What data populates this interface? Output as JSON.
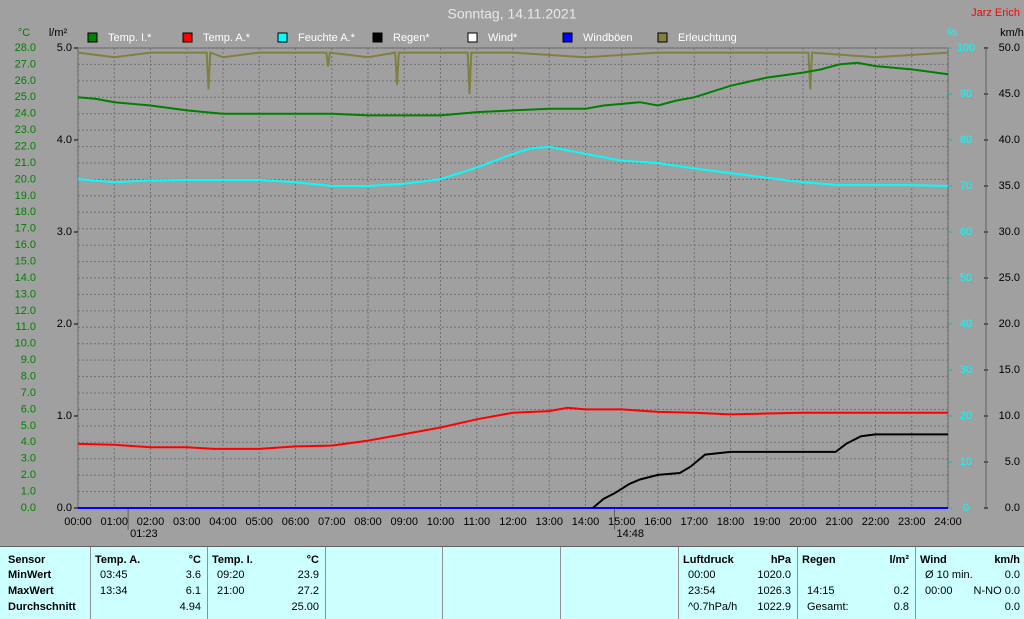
{
  "chart_data": {
    "type": "line",
    "title": "Sonntag, 14.11.2021",
    "author": "Jarz Erich",
    "ylabel": "°C",
    "y2label": "l/m²",
    "y3label": "%",
    "y4label": "km/h",
    "xlim": [
      0,
      24
    ],
    "xticks": [
      {
        "value": 0,
        "label": "00:00"
      },
      {
        "value": 1,
        "label": "01:00"
      },
      {
        "value": 2,
        "label": "02:00"
      },
      {
        "value": 3,
        "label": "03:00"
      },
      {
        "value": 4,
        "label": "04:00"
      },
      {
        "value": 5,
        "label": "05:00"
      },
      {
        "value": 6,
        "label": "06:00"
      },
      {
        "value": 7,
        "label": "07:00"
      },
      {
        "value": 8,
        "label": "08:00"
      },
      {
        "value": 9,
        "label": "09:00"
      },
      {
        "value": 10,
        "label": "10:00"
      },
      {
        "value": 11,
        "label": "11:00"
      },
      {
        "value": 12,
        "label": "12:00"
      },
      {
        "value": 13,
        "label": "13:00"
      },
      {
        "value": 14,
        "label": "14:00"
      },
      {
        "value": 15,
        "label": "15:00"
      },
      {
        "value": 16,
        "label": "16:00"
      },
      {
        "value": 17,
        "label": "17:00"
      },
      {
        "value": 18,
        "label": "18:00"
      },
      {
        "value": 19,
        "label": "19:00"
      },
      {
        "value": 20,
        "label": "20:00"
      },
      {
        "value": 21,
        "label": "21:00"
      },
      {
        "value": 22,
        "label": "22:00"
      },
      {
        "value": 23,
        "label": "23:00"
      },
      {
        "value": 24,
        "label": "24:00"
      }
    ],
    "ylim": [
      0,
      28
    ],
    "yticks": [
      {
        "value": 0,
        "label": "0.0"
      },
      {
        "value": 1,
        "label": "1.0"
      },
      {
        "value": 2,
        "label": "2.0"
      },
      {
        "value": 3,
        "label": "3.0"
      },
      {
        "value": 4,
        "label": "4.0"
      },
      {
        "value": 5,
        "label": "5.0"
      },
      {
        "value": 6,
        "label": "6.0"
      },
      {
        "value": 7,
        "label": "7.0"
      },
      {
        "value": 8,
        "label": "8.0"
      },
      {
        "value": 9,
        "label": "9.0"
      },
      {
        "value": 10,
        "label": "10.0"
      },
      {
        "value": 11,
        "label": "11.0"
      },
      {
        "value": 12,
        "label": "12.0"
      },
      {
        "value": 13,
        "label": "13.0"
      },
      {
        "value": 14,
        "label": "14.0"
      },
      {
        "value": 15,
        "label": "15.0"
      },
      {
        "value": 16,
        "label": "16.0"
      },
      {
        "value": 17,
        "label": "17.0"
      },
      {
        "value": 18,
        "label": "18.0"
      },
      {
        "value": 19,
        "label": "19.0"
      },
      {
        "value": 20,
        "label": "20.0"
      },
      {
        "value": 21,
        "label": "21.0"
      },
      {
        "value": 22,
        "label": "22.0"
      },
      {
        "value": 23,
        "label": "23.0"
      },
      {
        "value": 24,
        "label": "24.0"
      },
      {
        "value": 25,
        "label": "25.0"
      },
      {
        "value": 26,
        "label": "26.0"
      },
      {
        "value": 27,
        "label": "27.0"
      },
      {
        "value": 28,
        "label": "28.0"
      }
    ],
    "y2lim": [
      0,
      5
    ],
    "y2ticks": [
      {
        "value": 0,
        "label": "0.0"
      },
      {
        "value": 1,
        "label": "1.0"
      },
      {
        "value": 2,
        "label": "2.0"
      },
      {
        "value": 3,
        "label": "3.0"
      },
      {
        "value": 4,
        "label": "4.0"
      },
      {
        "value": 5,
        "label": "5.0"
      }
    ],
    "y3lim": [
      0,
      100
    ],
    "y3ticks": [
      0,
      10,
      20,
      30,
      40,
      50,
      60,
      70,
      80,
      90,
      100
    ],
    "y4lim": [
      0,
      50
    ],
    "y4ticks": [
      {
        "value": 0,
        "label": "0.0"
      },
      {
        "value": 5,
        "label": "5.0"
      },
      {
        "value": 10,
        "label": "10.0"
      },
      {
        "value": 15,
        "label": "15.0"
      },
      {
        "value": 20,
        "label": "20.0"
      },
      {
        "value": 25,
        "label": "25.0"
      },
      {
        "value": 30,
        "label": "30.0"
      },
      {
        "value": 35,
        "label": "35.0"
      },
      {
        "value": 40,
        "label": "40.0"
      },
      {
        "value": 45,
        "label": "45.0"
      },
      {
        "value": 50,
        "label": "50.0"
      }
    ],
    "grid": true,
    "series": [
      {
        "name": "Temp. I.*",
        "color": "#008000",
        "axis": "y",
        "x": [
          0,
          0.5,
          1,
          2,
          3,
          4,
          5,
          6,
          7,
          8,
          9,
          10,
          11,
          12,
          13,
          14,
          14.5,
          15,
          15.5,
          16,
          16.5,
          17,
          18,
          19,
          20,
          20.5,
          21,
          21.5,
          22,
          23,
          24
        ],
        "values": [
          25.0,
          24.9,
          24.7,
          24.5,
          24.2,
          24.0,
          24.0,
          24.0,
          24.0,
          23.9,
          23.9,
          23.9,
          24.1,
          24.2,
          24.3,
          24.3,
          24.5,
          24.6,
          24.7,
          24.5,
          24.8,
          25.0,
          25.7,
          26.2,
          26.5,
          26.7,
          27.0,
          27.1,
          26.9,
          26.7,
          26.4
        ]
      },
      {
        "name": "Temp. A.*",
        "color": "#ff0000",
        "axis": "y",
        "x": [
          0,
          1,
          2,
          3,
          3.75,
          4,
          5,
          6,
          7,
          8,
          9,
          10,
          11,
          12,
          13,
          13.5,
          14,
          15,
          16,
          17,
          18,
          19,
          20,
          21,
          22,
          23,
          24
        ],
        "values": [
          3.9,
          3.85,
          3.7,
          3.7,
          3.6,
          3.6,
          3.6,
          3.75,
          3.8,
          4.1,
          4.5,
          4.9,
          5.4,
          5.8,
          5.9,
          6.1,
          6.0,
          6.0,
          5.85,
          5.8,
          5.7,
          5.75,
          5.8,
          5.8,
          5.8,
          5.8,
          5.8
        ]
      },
      {
        "name": "Feuchte A.*",
        "color": "#00ffff",
        "axis": "y3",
        "x": [
          0,
          1,
          2,
          3,
          4,
          5,
          6,
          7,
          8,
          9,
          10,
          11,
          12,
          12.5,
          13,
          14,
          15,
          16,
          17,
          18,
          19,
          20,
          21,
          22,
          23,
          24
        ],
        "values": [
          71.5,
          70.8,
          71.2,
          71.3,
          71.3,
          71.3,
          70.8,
          70.0,
          70.0,
          70.5,
          71.5,
          74.0,
          77.0,
          78.2,
          78.5,
          77.0,
          75.5,
          75.0,
          73.8,
          72.8,
          71.8,
          70.8,
          70.2,
          70.2,
          70.2,
          70.0
        ]
      },
      {
        "name": "Regen*",
        "color": "#000000",
        "axis": "y2",
        "x": [
          14.2,
          14.5,
          14.8,
          15.2,
          15.5,
          16,
          16.6,
          16.9,
          17.3,
          18,
          19,
          20,
          20.9,
          21.2,
          21.6,
          22,
          23,
          24
        ],
        "values": [
          0,
          0.1,
          0.16,
          0.26,
          0.31,
          0.36,
          0.38,
          0.45,
          0.58,
          0.61,
          0.61,
          0.61,
          0.61,
          0.7,
          0.78,
          0.8,
          0.8,
          0.8
        ]
      },
      {
        "name": "Wind*",
        "color": "#ffffff",
        "axis": "y4",
        "x": [
          0,
          24
        ],
        "values": [
          0,
          0
        ]
      },
      {
        "name": "Windböen",
        "color": "#0000ff",
        "axis": "y4",
        "x": [
          0,
          24
        ],
        "values": [
          0,
          0
        ]
      },
      {
        "name": "Erleuchtung",
        "color": "#808040",
        "axis": "y3",
        "x": [
          0,
          1,
          2,
          3,
          3.55,
          3.6,
          3.65,
          4,
          5,
          6,
          6.85,
          6.9,
          6.95,
          8,
          8.75,
          8.8,
          8.85,
          10,
          10.75,
          10.8,
          10.85,
          12,
          14,
          16,
          18,
          20.15,
          20.2,
          20.25,
          22,
          24
        ],
        "values": [
          99,
          98,
          99,
          99,
          99,
          91,
          99,
          98,
          99,
          99,
          99,
          96,
          99,
          98,
          99,
          92,
          99,
          99,
          99,
          90,
          99,
          99,
          98,
          99,
          99,
          99,
          91,
          99,
          98,
          99
        ]
      }
    ],
    "annotations": [
      {
        "x": 1.383,
        "text": "01:23"
      },
      {
        "x": 14.8,
        "text": "14:48"
      }
    ]
  },
  "stats": {
    "row_labels": [
      "Sensor",
      "MinWert",
      "MaxWert",
      "Durchschnitt"
    ],
    "groups": [
      {
        "title": "Temp. A.",
        "unit": "°C",
        "rows": [
          [
            "03:45",
            "3.6"
          ],
          [
            "13:34",
            "6.1"
          ],
          [
            null,
            "4.94"
          ]
        ]
      },
      {
        "title": "Temp. I.",
        "unit": "°C",
        "rows": [
          [
            "09:20",
            "23.9"
          ],
          [
            "21:00",
            "27.2"
          ],
          [
            null,
            "25.00"
          ]
        ]
      },
      {
        "title": "Luftdruck",
        "unit": "hPa",
        "rows": [
          [
            "00:00",
            "1020.0"
          ],
          [
            "23:54",
            "1026.3"
          ],
          [
            "^0.7hPa/h",
            "1022.9"
          ]
        ]
      },
      {
        "title": "Regen",
        "unit": "l/m²",
        "rows": [
          [
            null,
            null
          ],
          [
            "14:15",
            "0.2"
          ],
          [
            "Gesamt:",
            "0.8"
          ]
        ]
      },
      {
        "title": "Wind",
        "unit": "km/h",
        "rows": [
          [
            "Ø 10 min.",
            "0.0"
          ],
          [
            "00:00",
            "N-NO 0.0"
          ],
          [
            null,
            "0.0"
          ]
        ]
      }
    ]
  }
}
